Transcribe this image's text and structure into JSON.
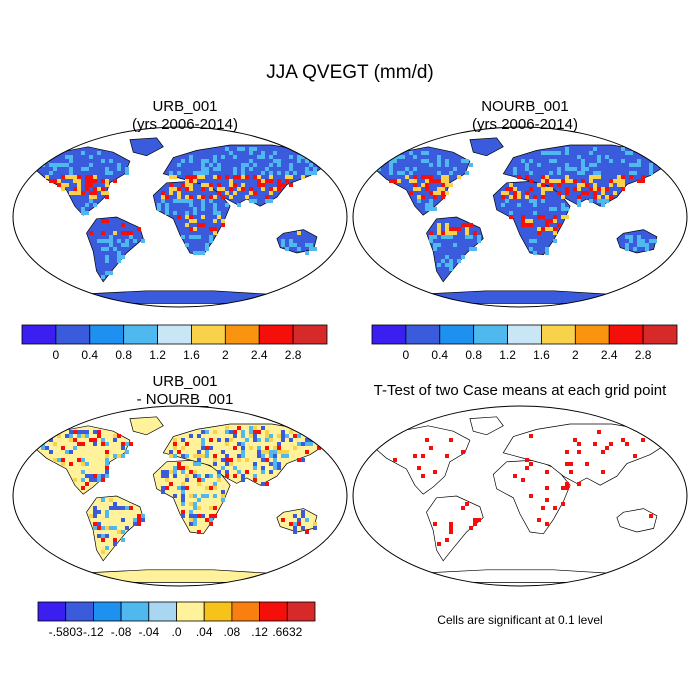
{
  "figure_title": "JJA QVEGT (mm/d)",
  "panels": {
    "urb": {
      "title_line1": "URB_001",
      "title_line2": "(yrs 2006-2014)"
    },
    "nourb": {
      "title_line1": "NOURB_001",
      "title_line2": "(yrs 2006-2014)"
    },
    "diff": {
      "title_line1": "URB_001",
      "title_line2": "- NOURB_001"
    },
    "ttest": {
      "title": "T-Test of two Case means at each grid point",
      "note": "Cells are significant at 0.1 level"
    }
  },
  "colorbar_main": {
    "colors": [
      "#3a1ff0",
      "#3a5bdc",
      "#1e90f0",
      "#4fb8ee",
      "#c8e6f5",
      "#f7d24a",
      "#f99410",
      "#f50f0a",
      "#d62a2a"
    ],
    "labels": [
      "0",
      "0.4",
      "0.8",
      "1.2",
      "1.6",
      "2",
      "2.4",
      "2.8"
    ]
  },
  "colorbar_diff": {
    "colors": [
      "#3a1ff0",
      "#3a5bdc",
      "#1e90f0",
      "#4fb8ee",
      "#a9d7f2",
      "#fff29a",
      "#f7c21a",
      "#f98010",
      "#f50f0a",
      "#d62a2a"
    ],
    "labels": [
      "-.5803",
      "-.12",
      "-.08",
      "-.04",
      ".0",
      ".04",
      ".08",
      ".12",
      ".6632"
    ]
  },
  "map_colors": {
    "ocean": "#ffffff",
    "low": "#3a5bdc",
    "mid": "#4fb8ee",
    "high": "#f7d24a",
    "peak": "#f50f0a",
    "diff_base": "#fff29a",
    "significant": "#f50f0a"
  }
}
